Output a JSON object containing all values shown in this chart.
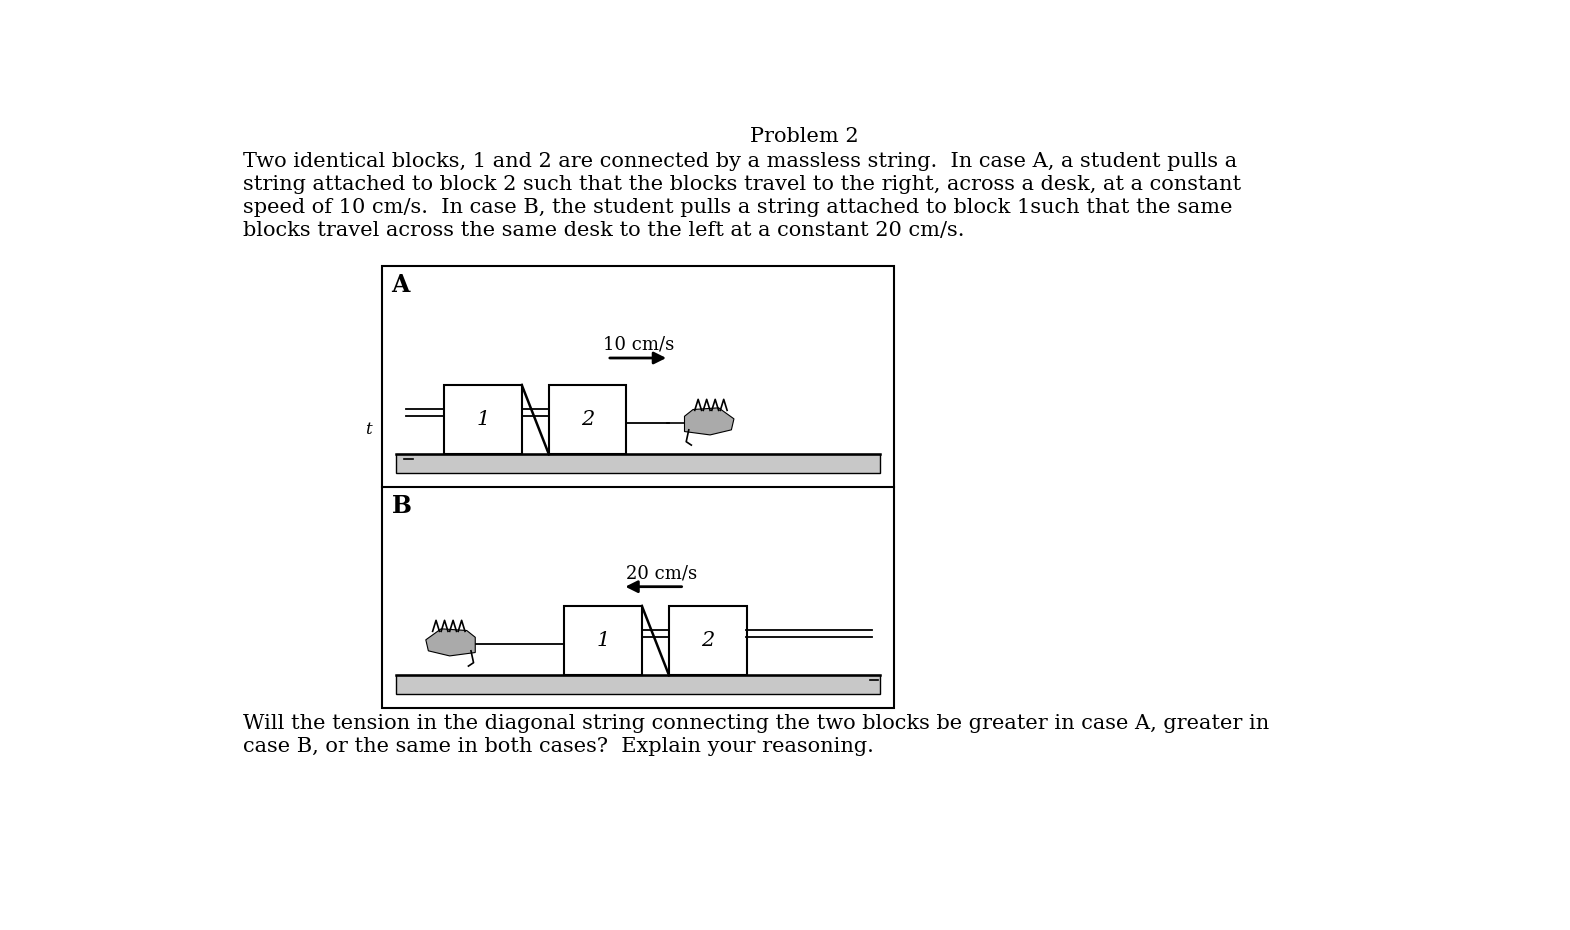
{
  "title": "Problem 2",
  "paragraph1": "Two identical blocks, 1 and 2 are connected by a massless string.  In case A, a student pulls a",
  "paragraph2": "string attached to block 2 such that the blocks travel to the right, across a desk, at a constant",
  "paragraph3": "speed of 10 cm/s.  In case B, the student pulls a string attached to block 1such that the same",
  "paragraph4": "blocks travel across the same desk to the left at a constant 20 cm/s.",
  "question1": "Will the tension in the diagonal string connecting the two blocks be greater in case A, greater in",
  "question2": "case B, or the same in both cases?  Explain your reasoning.",
  "case_a_label": "A",
  "case_b_label": "B",
  "speed_a": "10 cm/s",
  "speed_b": "20 cm/s",
  "block1_label": "1",
  "block2_label": "2",
  "bg_color": "#ffffff",
  "text_color": "#000000",
  "desk_gray": "#c8c8c8",
  "font_size_title": 15,
  "font_size_body": 15,
  "font_size_diagram": 13,
  "font_size_case": 17
}
